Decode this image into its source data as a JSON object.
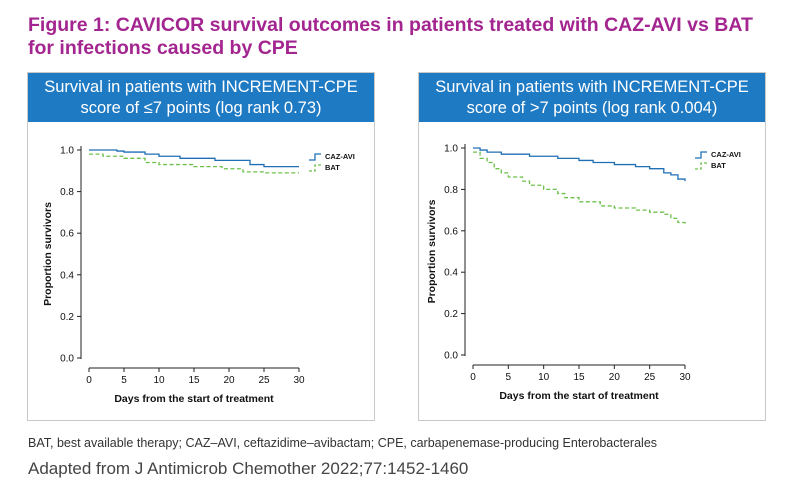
{
  "figure": {
    "title_line1": "Figure 1: CAVICOR survival outcomes in patients treated with CAZ-AVI vs BAT",
    "title_line2": "for infections caused by CPE",
    "title_color": "#a3258f",
    "header_color": "#1f7ac4"
  },
  "footnote": "BAT, best available therapy; CAZ–AVI, ceftazidime–avibactam; CPE, carbapenemase-producing Enterobacterales",
  "source": "Adapted from J Antimicrob Chemother 2022;77:1452-1460",
  "chart_data": [
    {
      "type": "line",
      "step": true,
      "header_line1": "Survival in patients with INCREMENT-CPE",
      "header_line2": "score of ≤7 points (log rank 0.73)",
      "xlabel": "Days from the start of treatment",
      "ylabel": "Proportion survivors",
      "xlim": [
        0,
        30
      ],
      "ylim": [
        0,
        1
      ],
      "x_ticks": [
        0,
        5,
        10,
        15,
        20,
        25,
        30
      ],
      "y_ticks": [
        0.0,
        0.2,
        0.4,
        0.6,
        0.8,
        1.0
      ],
      "y_tick_labels": [
        "0.0",
        "0.2",
        "0.4",
        "0.6",
        "0.8",
        "1.0"
      ],
      "legend_position": "top-right",
      "series": [
        {
          "name": "CAZ-AVI",
          "color": "#1f6fb5",
          "dashed": false,
          "x": [
            0,
            4,
            5,
            8,
            10,
            13,
            18,
            23,
            25,
            30
          ],
          "y": [
            1.0,
            0.995,
            0.99,
            0.98,
            0.97,
            0.96,
            0.95,
            0.93,
            0.92,
            0.92
          ]
        },
        {
          "name": "BAT",
          "color": "#6cc04a",
          "dashed": true,
          "x": [
            0,
            2,
            5,
            8,
            10,
            15,
            19,
            22,
            25,
            30
          ],
          "y": [
            0.98,
            0.97,
            0.96,
            0.94,
            0.93,
            0.92,
            0.91,
            0.895,
            0.89,
            0.89
          ]
        }
      ]
    },
    {
      "type": "line",
      "step": true,
      "header_line1": "Survival in patients with INCREMENT-CPE",
      "header_line2": "score of >7 points (log rank 0.004)",
      "xlabel": "Days from the start of treatment",
      "ylabel": "Proportion survivors",
      "xlim": [
        0,
        30
      ],
      "ylim": [
        0,
        1
      ],
      "x_ticks": [
        0,
        5,
        10,
        15,
        20,
        25,
        30
      ],
      "y_ticks": [
        0.0,
        0.2,
        0.4,
        0.6,
        0.8,
        1.0
      ],
      "y_tick_labels": [
        "0.0",
        "0.2",
        "0.4",
        "0.6",
        "0.8",
        "1.0"
      ],
      "legend_position": "top-right",
      "series": [
        {
          "name": "CAZ-AVI",
          "color": "#1f6fb5",
          "dashed": false,
          "x": [
            0,
            1,
            2,
            4,
            8,
            12,
            15,
            17,
            20,
            23,
            25,
            27,
            28,
            29,
            30
          ],
          "y": [
            1.0,
            0.99,
            0.98,
            0.97,
            0.96,
            0.95,
            0.94,
            0.93,
            0.92,
            0.91,
            0.9,
            0.88,
            0.87,
            0.85,
            0.84
          ]
        },
        {
          "name": "BAT",
          "color": "#6cc04a",
          "dashed": true,
          "x": [
            0,
            1,
            2,
            3,
            4,
            5,
            7,
            8,
            10,
            12,
            13,
            15,
            18,
            20,
            23,
            25,
            27,
            28,
            29,
            30
          ],
          "y": [
            0.98,
            0.95,
            0.93,
            0.9,
            0.88,
            0.86,
            0.84,
            0.82,
            0.8,
            0.78,
            0.76,
            0.74,
            0.72,
            0.71,
            0.7,
            0.69,
            0.68,
            0.66,
            0.64,
            0.63
          ]
        }
      ]
    }
  ]
}
